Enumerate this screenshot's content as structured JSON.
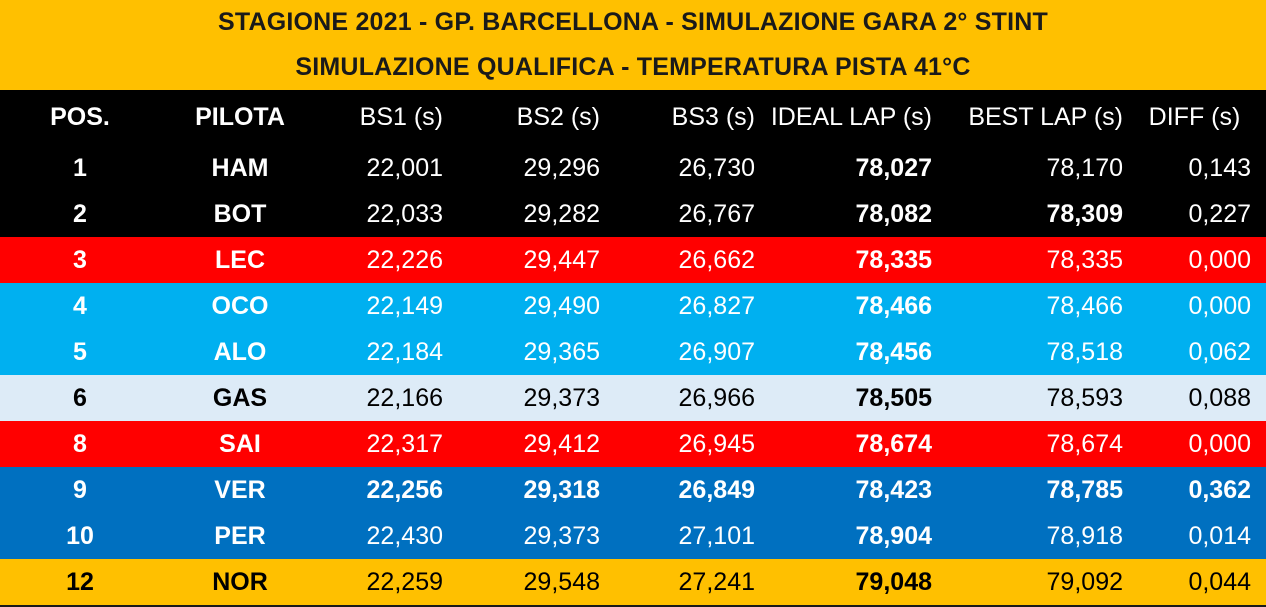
{
  "title": {
    "line1": "STAGIONE 2021 - GP. BARCELLONA - SIMULAZIONE GARA 2° STINT",
    "line2": "SIMULAZIONE QUALIFICA - TEMPERATURA PISTA 41°C"
  },
  "headers": {
    "pos": "POS.",
    "driver": "PILOTA",
    "bs1": "BS1 (s)",
    "bs2": "BS2 (s)",
    "bs3": "BS3 (s)",
    "ideal": "IDEAL LAP (s)",
    "best": "BEST LAP (s)",
    "diff": "DIFF (s)"
  },
  "colors": {
    "title_bg": "#FFC000",
    "header_bg": "#000000",
    "mercedes": "#000000",
    "ferrari": "#FF0000",
    "alpine": "#00B0F0",
    "alphatauri": "#DDEBF7",
    "redbull": "#0070C0",
    "mclaren": "#FFC000"
  },
  "rows": [
    {
      "pos": "1",
      "driver": "HAM",
      "bs1": "22,001",
      "bs2": "29,296",
      "bs3": "26,730",
      "ideal": "78,027",
      "best": "78,170",
      "diff": "0,143",
      "bg": "#000000",
      "fg": "#ffffff",
      "bold": [
        "ideal"
      ]
    },
    {
      "pos": "2",
      "driver": "BOT",
      "bs1": "22,033",
      "bs2": "29,282",
      "bs3": "26,767",
      "ideal": "78,082",
      "best": "78,309",
      "diff": "0,227",
      "bg": "#000000",
      "fg": "#ffffff",
      "bold": [
        "ideal",
        "best"
      ]
    },
    {
      "pos": "3",
      "driver": "LEC",
      "bs1": "22,226",
      "bs2": "29,447",
      "bs3": "26,662",
      "ideal": "78,335",
      "best": "78,335",
      "diff": "0,000",
      "bg": "#FF0000",
      "fg": "#ffffff",
      "bold": [
        "ideal"
      ]
    },
    {
      "pos": "4",
      "driver": "OCO",
      "bs1": "22,149",
      "bs2": "29,490",
      "bs3": "26,827",
      "ideal": "78,466",
      "best": "78,466",
      "diff": "0,000",
      "bg": "#00B0F0",
      "fg": "#ffffff",
      "bold": [
        "ideal"
      ]
    },
    {
      "pos": "5",
      "driver": "ALO",
      "bs1": "22,184",
      "bs2": "29,365",
      "bs3": "26,907",
      "ideal": "78,456",
      "best": "78,518",
      "diff": "0,062",
      "bg": "#00B0F0",
      "fg": "#ffffff",
      "bold": [
        "ideal"
      ]
    },
    {
      "pos": "6",
      "driver": "GAS",
      "bs1": "22,166",
      "bs2": "29,373",
      "bs3": "26,966",
      "ideal": "78,505",
      "best": "78,593",
      "diff": "0,088",
      "bg": "#DDEBF7",
      "fg": "#000000",
      "bold": [
        "ideal"
      ]
    },
    {
      "pos": "8",
      "driver": "SAI",
      "bs1": "22,317",
      "bs2": "29,412",
      "bs3": "26,945",
      "ideal": "78,674",
      "best": "78,674",
      "diff": "0,000",
      "bg": "#FF0000",
      "fg": "#ffffff",
      "bold": [
        "ideal"
      ]
    },
    {
      "pos": "9",
      "driver": "VER",
      "bs1": "22,256",
      "bs2": "29,318",
      "bs3": "26,849",
      "ideal": "78,423",
      "best": "78,785",
      "diff": "0,362",
      "bg": "#0070C0",
      "fg": "#ffffff",
      "bold": [
        "bs1",
        "bs2",
        "bs3",
        "ideal",
        "best",
        "diff"
      ]
    },
    {
      "pos": "10",
      "driver": "PER",
      "bs1": "22,430",
      "bs2": "29,373",
      "bs3": "27,101",
      "ideal": "78,904",
      "best": "78,918",
      "diff": "0,014",
      "bg": "#0070C0",
      "fg": "#ffffff",
      "bold": [
        "ideal"
      ]
    },
    {
      "pos": "12",
      "driver": "NOR",
      "bs1": "22,259",
      "bs2": "29,548",
      "bs3": "27,241",
      "ideal": "79,048",
      "best": "79,092",
      "diff": "0,044",
      "bg": "#FFC000",
      "fg": "#000000",
      "bold": [
        "ideal"
      ]
    }
  ]
}
